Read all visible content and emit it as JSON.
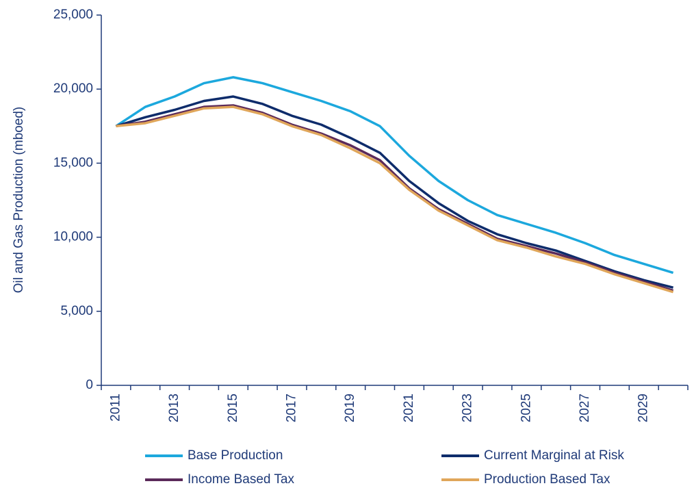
{
  "chart_data": {
    "type": "line",
    "y_label": "Oil and Gas Production (mboed)",
    "categories": [
      "2011",
      null,
      "2013",
      null,
      "2015",
      null,
      "2017",
      null,
      "2019",
      null,
      "2021",
      null,
      "2023",
      null,
      "2025",
      null,
      "2027",
      null,
      "2029",
      null
    ],
    "series": [
      {
        "name": "Base Production",
        "color": "#1ca8dd",
        "values": [
          17500,
          18800,
          19500,
          20400,
          20800,
          20400,
          19800,
          19200,
          18500,
          17500,
          15500,
          13800,
          12500,
          11500,
          10900,
          10300,
          9600,
          8800,
          8200,
          7600
        ]
      },
      {
        "name": "Current Marginal at Risk",
        "color": "#0e2c6b",
        "values": [
          17500,
          18100,
          18600,
          19200,
          19500,
          19000,
          18200,
          17600,
          16700,
          15700,
          13800,
          12300,
          11100,
          10200,
          9600,
          9100,
          8400,
          7700,
          7100,
          6600
        ]
      },
      {
        "name": "Income Based Tax",
        "color": "#5b2a5a",
        "values": [
          17500,
          17800,
          18300,
          18800,
          18900,
          18400,
          17600,
          17000,
          16200,
          15200,
          13300,
          11900,
          10900,
          9900,
          9400,
          8900,
          8300,
          7600,
          7000,
          6400
        ]
      },
      {
        "name": "Production Based Tax",
        "color": "#e0a65a",
        "values": [
          17500,
          17700,
          18200,
          18700,
          18800,
          18300,
          17500,
          16900,
          16000,
          15000,
          13200,
          11800,
          10800,
          9800,
          9300,
          8700,
          8200,
          7500,
          6900,
          6300
        ]
      }
    ],
    "ylim": [
      0,
      25000
    ],
    "yticks": [
      0,
      {
        "value": 5000,
        "label": "5,000"
      },
      {
        "value": 10000,
        "label": "10,000"
      },
      {
        "value": 15000,
        "label": "15,000"
      },
      {
        "value": 20000,
        "label": "20,000"
      },
      {
        "value": 25000,
        "label": "25,000"
      }
    ],
    "grid": false
  }
}
